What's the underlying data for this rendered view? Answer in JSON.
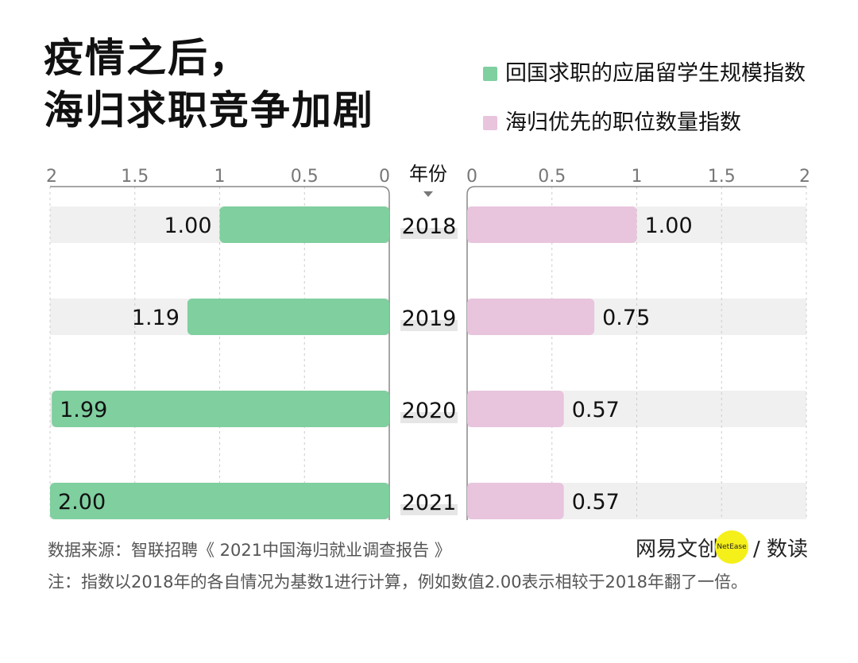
{
  "title_lines": [
    "疫情之后，",
    "海归求职竞争加剧"
  ],
  "chart_data": {
    "type": "bar",
    "orientation": "horizontal-butterfly",
    "center_axis_label": "年份",
    "categories": [
      "2018",
      "2019",
      "2020",
      "2021"
    ],
    "series": [
      {
        "name": "回国求职的应届留学生规模指数",
        "side": "left",
        "color": "#7fcf9f",
        "values": [
          1.0,
          1.19,
          1.99,
          2.0
        ],
        "labels": [
          "1.00",
          "1.19",
          "1.99",
          "2.00"
        ]
      },
      {
        "name": "海归优先的职位数量指数",
        "side": "right",
        "color": "#e8c4dd",
        "values": [
          1.0,
          0.75,
          0.57,
          0.57
        ],
        "labels": [
          "1.00",
          "0.75",
          "0.57",
          "0.57"
        ]
      }
    ],
    "xlim": [
      0,
      2
    ],
    "ticks": [
      "0",
      "0.5",
      "1",
      "1.5",
      "2"
    ],
    "tick_values": [
      0,
      0.5,
      1,
      1.5,
      2
    ],
    "grid": true,
    "legend_placement": "top-right",
    "row_background": "#f0f0f0"
  },
  "footer": {
    "source": "数据来源：智联招聘《 2021中国海归就业调查报告 》",
    "note": "注：指数以2018年的各自情况为基数1进行计算，例如数值2.00表示相较于2018年翻了一倍。",
    "logo_text": "网易文创",
    "logo_badge": "NetEase",
    "logo_suffix": "/ 数读"
  }
}
